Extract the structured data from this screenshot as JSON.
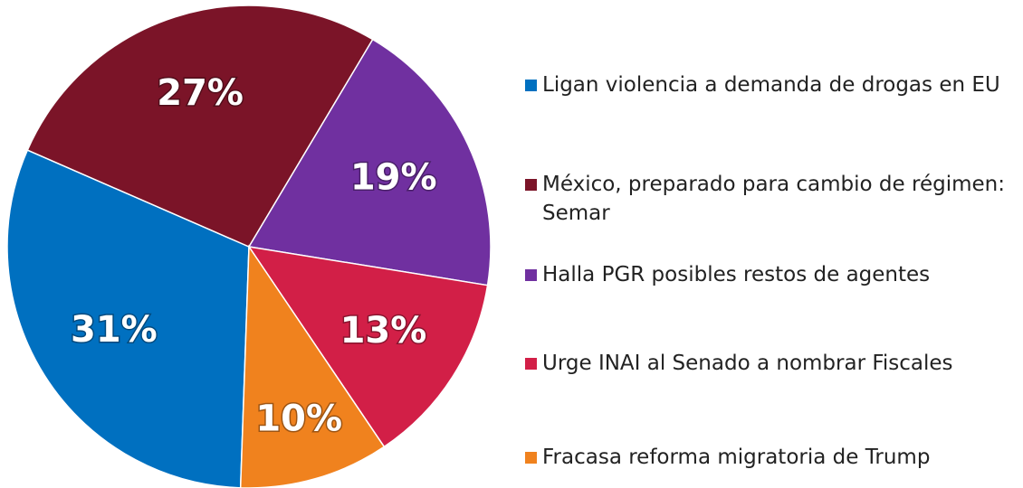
{
  "chart_data": {
    "type": "pie",
    "categories": [
      "Ligan violencia a demanda de drogas en EU",
      "México, preparado para cambio de régimen: Semar",
      "Halla PGR posibles restos de agentes",
      "Urge INAI al Senado a nombrar Fiscales",
      "Fracasa reforma migratoria de Trump"
    ],
    "values": [
      31,
      27,
      19,
      13,
      10
    ],
    "value_labels": [
      "31%",
      "27%",
      "19%",
      "13%",
      "10%"
    ],
    "colors": [
      "#0070c0",
      "#7b1428",
      "#7030a0",
      "#d21f47",
      "#f0821e"
    ]
  }
}
